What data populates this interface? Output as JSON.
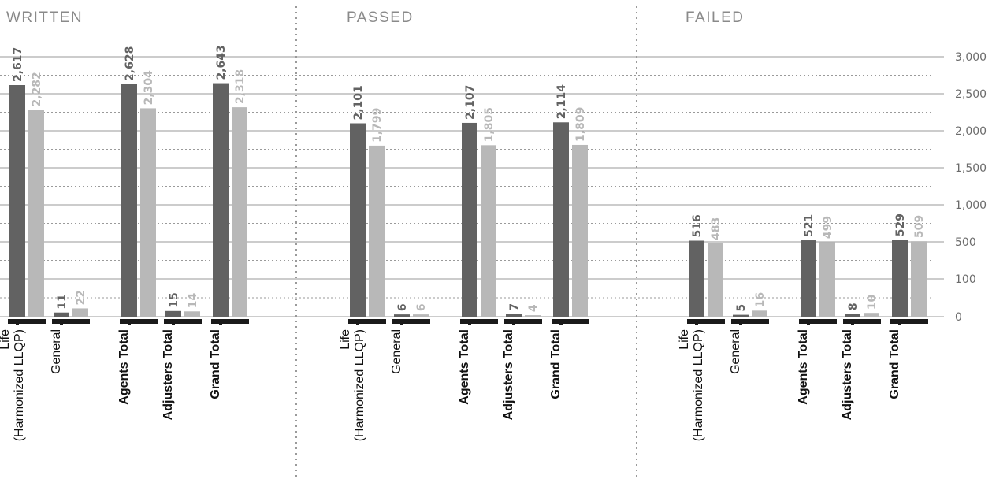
{
  "colors": {
    "current": "#626262",
    "previous": "#b8b8b8",
    "grid": "#9a9a9a",
    "divider": "#9a9a9a",
    "base": "#1a1a1a"
  },
  "chart_data": {
    "type": "bar",
    "y_scale": "piecewise: 0,100,500 then 500 steps to 3,000",
    "yticks": [
      "0",
      "100",
      "500",
      "1,000",
      "1,500",
      "2,000",
      "2,500",
      "3,000"
    ],
    "ytick_values": [
      0,
      100,
      500,
      1000,
      1500,
      2000,
      2500,
      3000
    ],
    "ylim": [
      0,
      3000
    ],
    "grid": true,
    "categories": [
      {
        "lines": [
          "Life",
          "(Harmonized LLQP)"
        ],
        "bold": false
      },
      {
        "lines": [
          "General"
        ],
        "bold": false
      },
      {
        "lines": [
          "Agents Total"
        ],
        "bold": true
      },
      {
        "lines": [
          "Adjusters Total"
        ],
        "bold": true
      },
      {
        "lines": [
          "Grand Total"
        ],
        "bold": true
      }
    ],
    "panels": [
      {
        "title": "WRITTEN",
        "dark": [
          2617,
          11,
          2628,
          15,
          2643
        ],
        "light": [
          2282,
          22,
          2304,
          14,
          2318
        ],
        "dark_labels": [
          "2,617",
          "11",
          "2,628",
          "15",
          "2,643"
        ],
        "light_labels": [
          "2,282",
          "22",
          "2,304",
          "14",
          "2,318"
        ]
      },
      {
        "title": "PASSED",
        "dark": [
          2101,
          6,
          2107,
          7,
          2114
        ],
        "light": [
          1799,
          6,
          1805,
          4,
          1809
        ],
        "dark_labels": [
          "2,101",
          "6",
          "2,107",
          "7",
          "2,114"
        ],
        "light_labels": [
          "1,799",
          "6",
          "1,805",
          "4",
          "1,809"
        ]
      },
      {
        "title": "FAILED",
        "dark": [
          516,
          5,
          521,
          8,
          529
        ],
        "light": [
          483,
          16,
          499,
          10,
          509
        ],
        "dark_labels": [
          "516",
          "5",
          "521",
          "8",
          "529"
        ],
        "light_labels": [
          "483",
          "16",
          "499",
          "10",
          "509"
        ]
      }
    ]
  }
}
